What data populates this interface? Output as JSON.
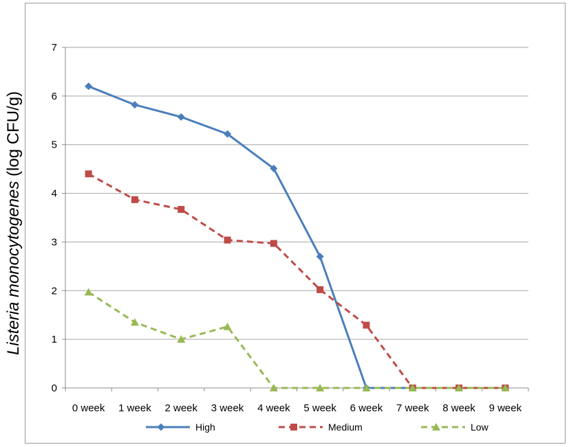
{
  "chart_data": {
    "type": "line",
    "categories": [
      "0 week",
      "1 week",
      "2 week",
      "3 week",
      "4 week",
      "5 week",
      "6 week",
      "7 week",
      "8 week",
      "9 week"
    ],
    "ylabel_italic": "Listeria monocytogenes",
    "ylabel_rest": " (log CFU/g)",
    "ylim": [
      0,
      7
    ],
    "yticks": [
      0,
      1,
      2,
      3,
      4,
      5,
      6,
      7
    ],
    "grid": true,
    "legend_position": "bottom",
    "series": [
      {
        "name": "High",
        "color": "#4a7ebb",
        "dash": "solid",
        "marker": "diamond",
        "values": [
          6.2,
          5.82,
          5.57,
          5.22,
          4.51,
          2.7,
          0,
          0,
          0,
          0
        ]
      },
      {
        "name": "Medium",
        "color": "#be4b48",
        "dash": "dashed",
        "marker": "square",
        "values": [
          4.4,
          3.87,
          3.67,
          3.04,
          2.97,
          2.02,
          1.29,
          0,
          0,
          0
        ]
      },
      {
        "name": "Low",
        "color": "#98b954",
        "dash": "dashed",
        "marker": "triangle",
        "values": [
          1.97,
          1.35,
          1.0,
          1.26,
          0,
          0,
          0,
          0,
          0,
          0
        ]
      }
    ]
  }
}
